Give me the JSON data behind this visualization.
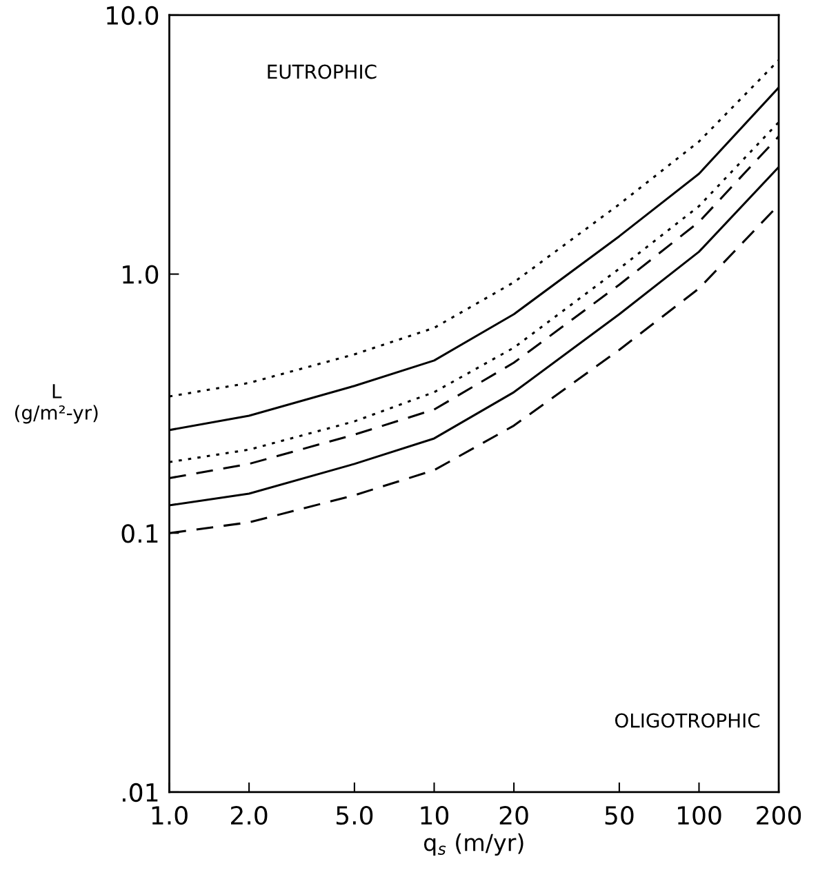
{
  "chart_data": {
    "type": "line",
    "xlabel": "q$_{s}$ (m/yr)",
    "ylabel": "L\n(g/m²-yr)",
    "log": "xy",
    "grid": false,
    "legend": false,
    "marker": "none",
    "x": [
      1,
      2,
      5,
      10,
      20,
      50,
      100,
      200
    ],
    "series": [
      {
        "color": "#000000",
        "line_style": "dotted",
        "values": [
          0.337,
          0.38,
          0.49,
          0.62,
          0.93,
          1.86,
          3.25,
          6.7
        ]
      },
      {
        "color": "#000000",
        "line_style": "solid",
        "values": [
          0.25,
          0.284,
          0.37,
          0.464,
          0.7,
          1.4,
          2.44,
          5.25
        ]
      },
      {
        "color": "#000000",
        "line_style": "dotted",
        "values": [
          0.188,
          0.21,
          0.27,
          0.35,
          0.52,
          1.05,
          1.83,
          3.86
        ]
      },
      {
        "color": "#000000",
        "line_style": "dashed",
        "values": [
          0.163,
          0.185,
          0.24,
          0.3,
          0.455,
          0.91,
          1.59,
          3.4
        ]
      },
      {
        "color": "#000000",
        "line_style": "solid",
        "values": [
          0.128,
          0.142,
          0.185,
          0.232,
          0.35,
          0.7,
          1.22,
          2.59
        ]
      },
      {
        "color": "#000000",
        "line_style": "dashed",
        "values": [
          0.1,
          0.11,
          0.14,
          0.175,
          0.26,
          0.51,
          0.88,
          1.85
        ]
      }
    ],
    "xlim": [
      1,
      200
    ],
    "ylim": [
      0.01,
      10
    ],
    "xticks": [
      {
        "value": 1,
        "label": "1.0"
      },
      {
        "value": 2,
        "label": "2.0"
      },
      {
        "value": 5,
        "label": "5.0"
      },
      10,
      20,
      50,
      100,
      200
    ],
    "yticks": [
      {
        "value": 0.01,
        "label": ".01"
      },
      0.1,
      {
        "value": 1,
        "label": "1.0"
      },
      {
        "value": 10,
        "label": "10.0"
      }
    ],
    "annotations": [
      "EUTROPHIC",
      "OLIGOTROPHIC"
    ]
  }
}
